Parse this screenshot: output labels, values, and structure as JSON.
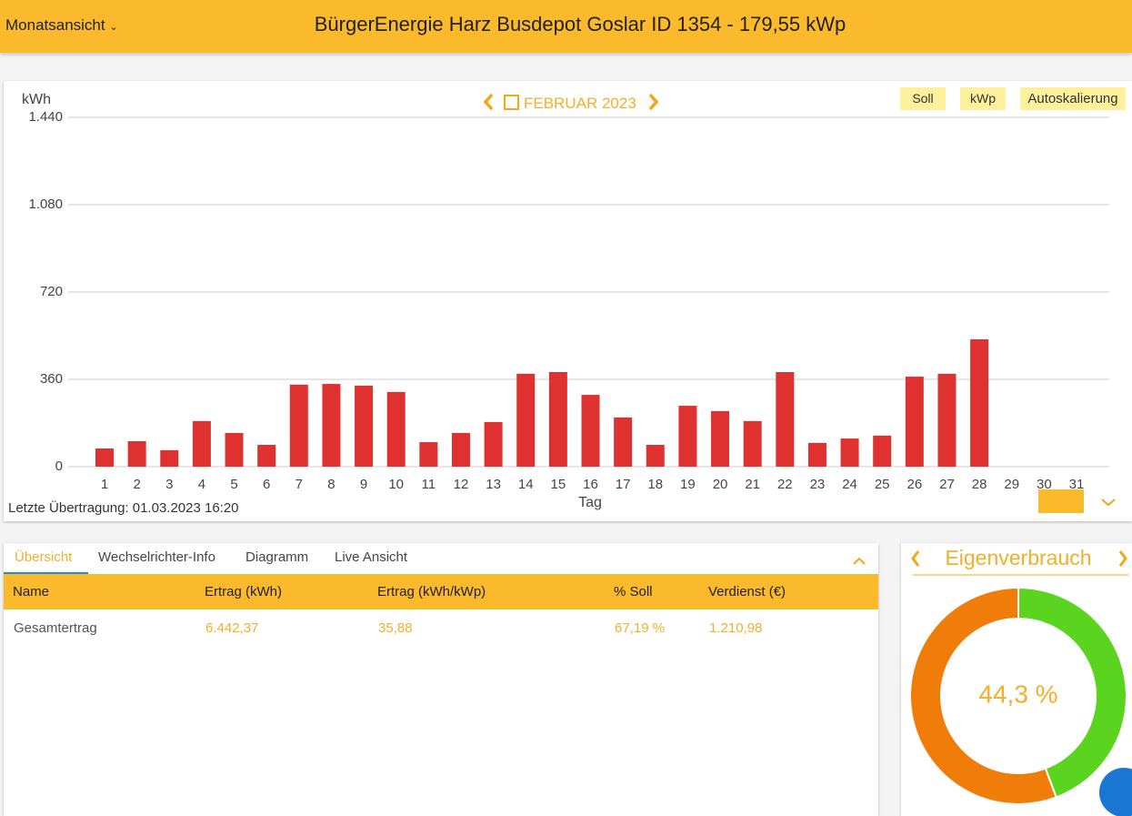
{
  "header": {
    "view_menu": "Monatsansicht",
    "title": "BürgerEnergie Harz Busdepot Goslar ID 1354 - 179,55 kWp"
  },
  "chart_data": {
    "type": "bar",
    "period": "FEBRUAR 2023",
    "y_unit": "kWh",
    "x_label": "Tag",
    "buttons": [
      "Soll",
      "kWp",
      "Autoskalierung"
    ],
    "last_transfer": "Letzte Übertragung: 01.03.2023 16:20",
    "categories": [
      "1",
      "2",
      "3",
      "4",
      "5",
      "6",
      "7",
      "8",
      "9",
      "10",
      "11",
      "12",
      "13",
      "14",
      "15",
      "16",
      "17",
      "18",
      "19",
      "20",
      "21",
      "22",
      "23",
      "24",
      "25",
      "26",
      "27",
      "28",
      "29",
      "30",
      "31"
    ],
    "values": [
      75,
      105,
      68,
      188,
      139,
      90,
      338,
      341,
      334,
      308,
      101,
      139,
      184,
      383,
      390,
      296,
      203,
      90,
      251,
      229,
      188,
      390,
      98,
      116,
      128,
      371,
      383,
      525,
      null,
      null,
      null
    ],
    "color": "#e03131",
    "ylim": [
      0,
      1440
    ],
    "yticks": [
      0,
      360,
      720,
      {
        "value": 1080,
        "label": "1.080"
      },
      {
        "value": 1440,
        "label": "1.440"
      }
    ],
    "grid": true
  },
  "tabs": [
    "Übersicht",
    "Wechselrichter-Info",
    "Diagramm",
    "Live Ansicht"
  ],
  "table": {
    "header": [
      "Name",
      "Ertrag (kWh)",
      "Ertrag (kWh/kWp)",
      "% Soll",
      "Verdienst (€)"
    ],
    "rows": [
      [
        "Gesamtertrag",
        "6.442,37",
        "35,88",
        "67,19 %",
        "1.210,98"
      ]
    ]
  },
  "donut": {
    "title": "Eigenverbrauch",
    "values": [
      44.3,
      55.7
    ],
    "colors": [
      "#5ad41e",
      "#f07c0a"
    ],
    "center_label": "44,3 %"
  }
}
